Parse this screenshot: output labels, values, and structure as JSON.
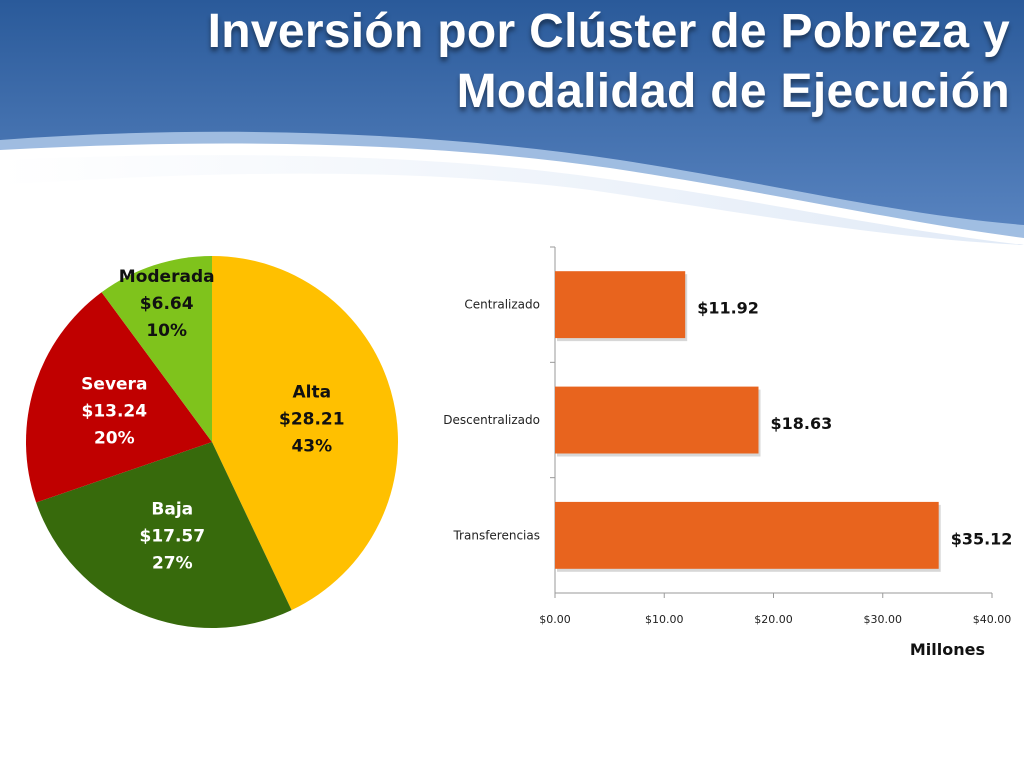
{
  "title": {
    "line1": "Inversión por Clúster de Pobreza y",
    "line2": "Modalidad de Ejecución"
  },
  "colors": {
    "banner_dark": "#1e4d8c",
    "banner_light": "#7fa8d8",
    "bar": "#e8641e"
  },
  "chart_data": [
    {
      "type": "pie",
      "categories": [
        "Alta",
        "Baja",
        "Severa",
        "Moderada"
      ],
      "values": [
        28.21,
        17.57,
        13.24,
        6.64
      ],
      "value_labels": [
        "$28.21",
        "$17.57",
        "$13.24",
        "$6.64"
      ],
      "percent_labels": [
        "43%",
        "27%",
        "20%",
        "10%"
      ],
      "colors": [
        "#ffc000",
        "#376a0c",
        "#c00000",
        "#7fc31c"
      ],
      "label_colors": [
        "#111111",
        "#ffffff",
        "#ffffff",
        "#111111"
      ],
      "start_angle_deg": 0,
      "direction": "clockwise"
    },
    {
      "type": "bar",
      "orientation": "horizontal",
      "categories": [
        "Centralizado",
        "Descentralizado",
        "Transferencias"
      ],
      "values": [
        11.92,
        18.63,
        35.12
      ],
      "value_labels": [
        "$11.92",
        "$18.63",
        "$35.12"
      ],
      "xlim": [
        0,
        40
      ],
      "xticks": [
        0,
        10,
        20,
        30,
        40
      ],
      "xtick_labels": [
        "$0.00",
        "$10.00",
        "$20.00",
        "$30.00",
        "$40.00"
      ],
      "xlabel": "Millones",
      "grid": false
    }
  ]
}
